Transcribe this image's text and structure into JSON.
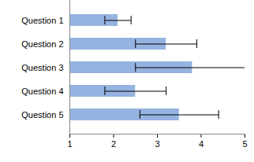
{
  "chart_data": {
    "type": "bar",
    "orientation": "horizontal",
    "categories": [
      "Question 1",
      "Question 2",
      "Question 3",
      "Question 4",
      "Question 5"
    ],
    "values": [
      2.1,
      3.2,
      3.8,
      2.5,
      3.5
    ],
    "errors": [
      0.3,
      0.7,
      1.3,
      0.7,
      0.9
    ],
    "color": "#95b3e0",
    "xlim": [
      1,
      5
    ],
    "xticks": [
      1,
      2,
      3,
      4,
      5
    ],
    "grid": false
  }
}
